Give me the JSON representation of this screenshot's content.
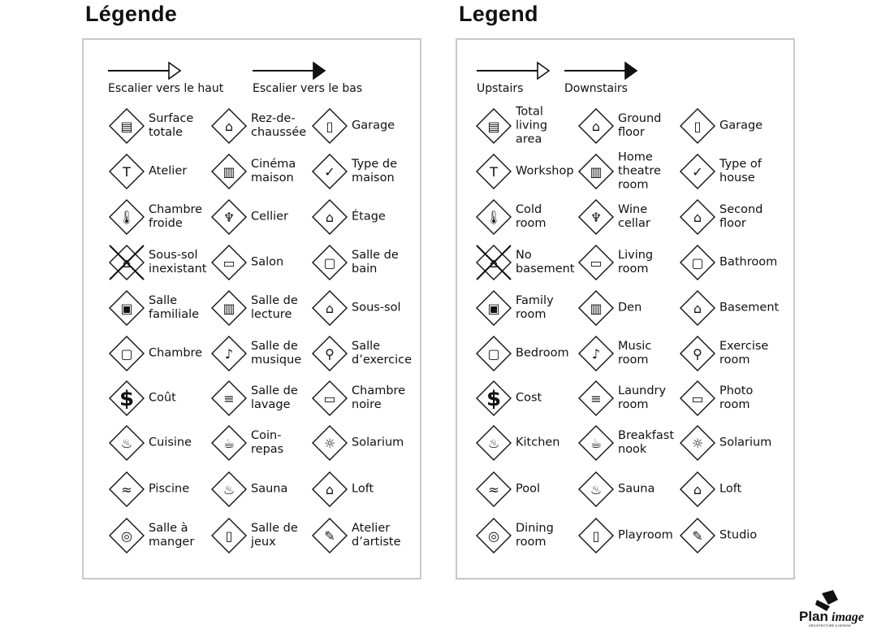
{
  "panels": [
    {
      "title": "Légende",
      "up_label": "Escalier vers le haut",
      "down_label": "Escalier vers le bas",
      "items": [
        {
          "label": "Surface\ntotale",
          "icon": "total-area-icon"
        },
        {
          "label": "Rez-de-\nchaussée",
          "icon": "ground-floor-icon"
        },
        {
          "label": "Garage",
          "icon": "garage-icon"
        },
        {
          "label": "Atelier",
          "icon": "hammer-icon"
        },
        {
          "label": "Cinéma\nmaison",
          "icon": "home-theatre-icon"
        },
        {
          "label": "Type de\nmaison",
          "icon": "house-type-check-icon"
        },
        {
          "label": "Chambre\nfroide",
          "icon": "thermometer-icon"
        },
        {
          "label": "Cellier",
          "icon": "wine-icon"
        },
        {
          "label": "Étage",
          "icon": "second-floor-icon"
        },
        {
          "label": "Sous-sol\ninexistant",
          "icon": "no-basement-icon"
        },
        {
          "label": "Salon",
          "icon": "sofa-icon"
        },
        {
          "label": "Salle de\nbain",
          "icon": "toilet-icon"
        },
        {
          "label": "Salle\nfamiliale",
          "icon": "tv-icon"
        },
        {
          "label": "Salle de\nlecture",
          "icon": "book-icon"
        },
        {
          "label": "Sous-sol",
          "icon": "basement-icon"
        },
        {
          "label": "Chambre",
          "icon": "bed-icon"
        },
        {
          "label": "Salle de\nmusique",
          "icon": "music-note-icon"
        },
        {
          "label": "Salle\nd’exercice",
          "icon": "weightlifter-icon"
        },
        {
          "label": "Coût",
          "icon": "dollar-icon"
        },
        {
          "label": "Salle de\nlavage",
          "icon": "washer-icon"
        },
        {
          "label": "Chambre\nnoire",
          "icon": "camera-icon"
        },
        {
          "label": "Cuisine",
          "icon": "pot-icon"
        },
        {
          "label": "Coin-\nrepas",
          "icon": "coffee-cup-icon"
        },
        {
          "label": "Solarium",
          "icon": "sun-icon"
        },
        {
          "label": "Piscine",
          "icon": "swimmer-icon"
        },
        {
          "label": "Sauna",
          "icon": "sauna-icon"
        },
        {
          "label": "Loft",
          "icon": "loft-icon"
        },
        {
          "label": "Salle à\nmanger",
          "icon": "plate-cutlery-icon"
        },
        {
          "label": "Salle de\njeux",
          "icon": "playroom-icon"
        },
        {
          "label": "Atelier\nd’artiste",
          "icon": "palette-icon"
        }
      ]
    },
    {
      "title": "Legend",
      "up_label": "Upstairs",
      "down_label": "Downstairs",
      "items": [
        {
          "label": "Total\nliving\narea",
          "icon": "total-area-icon"
        },
        {
          "label": "Ground\nfloor",
          "icon": "ground-floor-icon"
        },
        {
          "label": "Garage",
          "icon": "garage-icon"
        },
        {
          "label": "Workshop",
          "icon": "hammer-icon"
        },
        {
          "label": "Home\ntheatre\nroom",
          "icon": "home-theatre-icon"
        },
        {
          "label": "Type of\nhouse",
          "icon": "house-type-check-icon"
        },
        {
          "label": "Cold\nroom",
          "icon": "thermometer-icon"
        },
        {
          "label": "Wine\ncellar",
          "icon": "wine-icon"
        },
        {
          "label": "Second\nfloor",
          "icon": "second-floor-icon"
        },
        {
          "label": "No\nbasement",
          "icon": "no-basement-icon"
        },
        {
          "label": "Living\nroom",
          "icon": "sofa-icon"
        },
        {
          "label": "Bathroom",
          "icon": "toilet-icon"
        },
        {
          "label": "Family\nroom",
          "icon": "tv-icon"
        },
        {
          "label": "Den",
          "icon": "book-icon"
        },
        {
          "label": "Basement",
          "icon": "basement-icon"
        },
        {
          "label": "Bedroom",
          "icon": "bed-icon"
        },
        {
          "label": "Music\nroom",
          "icon": "music-note-icon"
        },
        {
          "label": "Exercise\nroom",
          "icon": "weightlifter-icon"
        },
        {
          "label": "Cost",
          "icon": "dollar-icon"
        },
        {
          "label": "Laundry\nroom",
          "icon": "washer-icon"
        },
        {
          "label": "Photo\nroom",
          "icon": "camera-icon"
        },
        {
          "label": "Kitchen",
          "icon": "pot-icon"
        },
        {
          "label": "Breakfast\nnook",
          "icon": "coffee-cup-icon"
        },
        {
          "label": "Solarium",
          "icon": "sun-icon"
        },
        {
          "label": "Pool",
          "icon": "swimmer-icon"
        },
        {
          "label": "Sauna",
          "icon": "sauna-icon"
        },
        {
          "label": "Loft",
          "icon": "loft-icon"
        },
        {
          "label": "Dining\nroom",
          "icon": "plate-cutlery-icon"
        },
        {
          "label": "Playroom",
          "icon": "playroom-icon"
        },
        {
          "label": "Studio",
          "icon": "palette-icon"
        }
      ]
    }
  ],
  "logo": {
    "text": "PlanImage",
    "subtitle": "ARCHITECTURE & DESIGN"
  }
}
